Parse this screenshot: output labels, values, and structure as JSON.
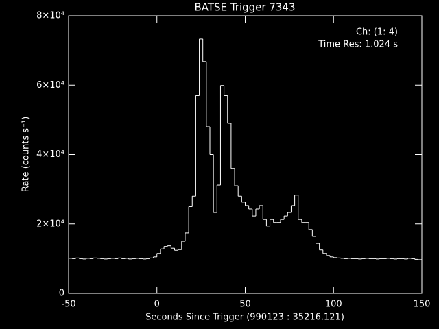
{
  "chart_data": {
    "type": "step",
    "title": "BATSE Trigger 7343",
    "xlabel": "Seconds Since Trigger (990123 : 35216.121)",
    "ylabel": "Rate (counts s⁻¹)",
    "annotations": [
      "Ch: (1: 4)",
      "Time Res: 1.024 s"
    ],
    "color": "#ffffff",
    "xlim": [
      -50,
      150
    ],
    "xticks": [
      -50,
      0,
      50,
      100,
      150
    ],
    "ylim": [
      0,
      80000
    ],
    "yticks": [
      0,
      {
        "value": 20000,
        "label": "2×10⁴"
      },
      {
        "value": 40000,
        "label": "4×10⁴"
      },
      {
        "value": 60000,
        "label": "6×10⁴"
      },
      {
        "value": 80000,
        "label": "8×10⁴"
      }
    ],
    "x": [
      -50,
      -48,
      -46,
      -44,
      -42,
      -40,
      -38,
      -36,
      -34,
      -32,
      -30,
      -28,
      -26,
      -24,
      -22,
      -20,
      -18,
      -16,
      -14,
      -12,
      -10,
      -8,
      -6,
      -4,
      -2,
      0,
      2,
      4,
      6,
      8,
      10,
      12,
      14,
      16,
      18,
      20,
      22,
      24,
      26,
      28,
      30,
      32,
      34,
      36,
      38,
      40,
      42,
      44,
      46,
      48,
      50,
      52,
      54,
      56,
      58,
      60,
      62,
      64,
      66,
      68,
      70,
      72,
      74,
      76,
      78,
      80,
      82,
      84,
      86,
      88,
      90,
      92,
      94,
      96,
      98,
      100,
      102,
      104,
      106,
      108,
      110,
      112,
      114,
      116,
      118,
      120,
      122,
      124,
      126,
      128,
      130,
      132,
      134,
      136,
      138,
      140,
      142,
      144,
      146,
      148
    ],
    "values": [
      10100,
      10000,
      10200,
      10000,
      9900,
      10100,
      10000,
      10200,
      10100,
      10000,
      9900,
      10000,
      10100,
      10000,
      10200,
      10000,
      10100,
      9900,
      10000,
      10100,
      10000,
      9900,
      10000,
      10200,
      10500,
      11500,
      12800,
      13500,
      13700,
      13000,
      12400,
      12600,
      15000,
      17400,
      25000,
      28000,
      57000,
      73300,
      66800,
      48000,
      40000,
      23300,
      31200,
      59900,
      57000,
      49000,
      36000,
      31000,
      28000,
      26300,
      25300,
      24300,
      22300,
      24300,
      25300,
      21300,
      19400,
      21300,
      20400,
      20400,
      21300,
      22300,
      23300,
      25300,
      28300,
      21300,
      20400,
      20400,
      18400,
      16400,
      14400,
      12500,
      11500,
      10900,
      10500,
      10300,
      10200,
      10100,
      10000,
      10100,
      10000,
      10000,
      9900,
      10000,
      10100,
      10000,
      10000,
      9900,
      10000,
      10000,
      10100,
      10000,
      9900,
      10000,
      10000,
      9900,
      10100,
      10000,
      9800,
      9700
    ]
  }
}
